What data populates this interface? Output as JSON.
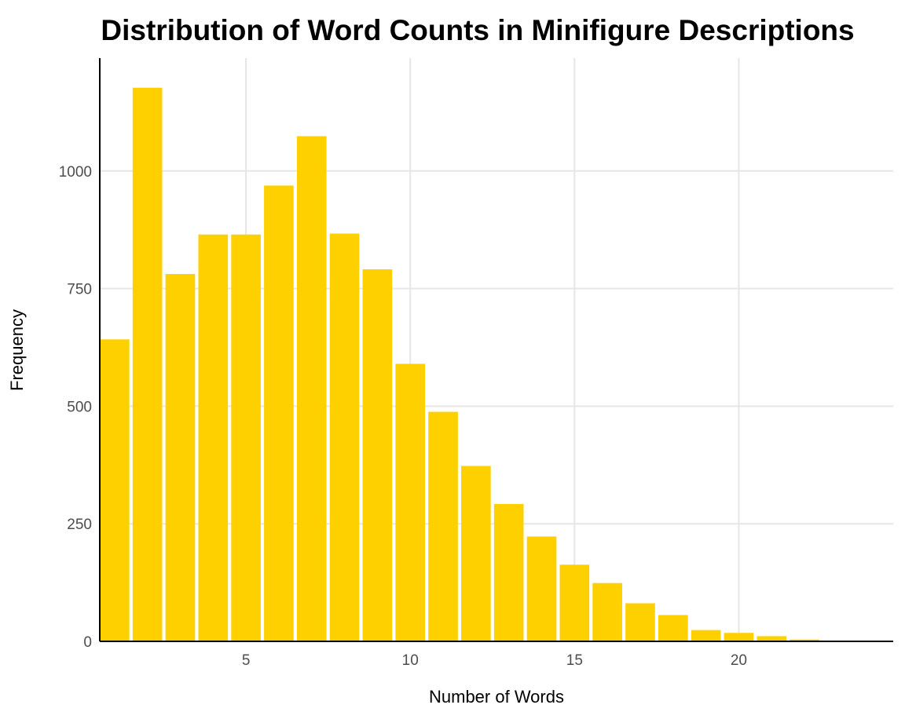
{
  "chart_data": {
    "type": "bar",
    "title": "Distribution of Word Counts in Minifigure Descriptions",
    "xlabel": "Number of Words",
    "ylabel": "Frequency",
    "x": [
      1,
      2,
      3,
      4,
      5,
      6,
      7,
      8,
      9,
      10,
      11,
      12,
      13,
      14,
      15,
      16,
      17,
      18,
      19,
      20,
      21,
      22
    ],
    "values": [
      642,
      1177,
      781,
      865,
      865,
      969,
      1074,
      867,
      791,
      590,
      488,
      373,
      292,
      223,
      163,
      124,
      81,
      56,
      24,
      18,
      11,
      4
    ],
    "xticks": [
      5,
      10,
      15,
      20
    ],
    "yticks": [
      0,
      250,
      500,
      750,
      1000
    ],
    "xlim": [
      0.55,
      24.7
    ],
    "ylim": [
      0,
      1240
    ],
    "grid": true,
    "colors": {
      "bar": "#FFD000",
      "grid": "#E6E6E6",
      "axis": "#000000",
      "tick_label": "#4D4D4D"
    }
  }
}
